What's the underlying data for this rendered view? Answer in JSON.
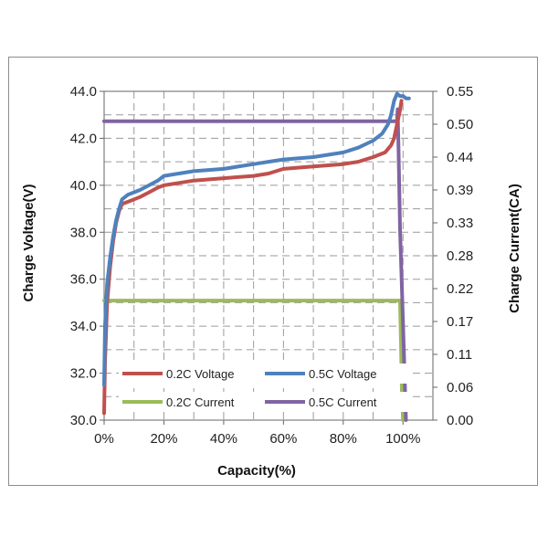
{
  "chart_data": {
    "type": "line",
    "xlabel": "Capacity(%)",
    "ylabel_left": "Charge Voltage(V)",
    "ylabel_right": "Charge Current(CA)",
    "xlim": [
      0,
      110
    ],
    "ylim_left": [
      30.0,
      44.0
    ],
    "ylim_right": [
      0.0,
      0.55
    ],
    "x_ticks": [
      "0%",
      "20%",
      "40%",
      "60%",
      "80%",
      "100%"
    ],
    "y_left_ticks": [
      "30.0",
      "32.0",
      "34.0",
      "36.0",
      "38.0",
      "40.0",
      "42.0",
      "44.0"
    ],
    "y_right_ticks": [
      "0.00",
      "0.06",
      "0.11",
      "0.17",
      "0.22",
      "0.28",
      "0.33",
      "0.39",
      "0.44",
      "0.50",
      "0.55"
    ],
    "grid": true,
    "legend_position": "bottom-left",
    "series": [
      {
        "name": "0.2C Voltage",
        "axis": "left",
        "color": "#c0504d",
        "x": [
          0,
          0.3,
          1,
          2,
          3,
          4,
          5,
          6,
          8,
          10,
          12,
          15,
          18,
          20,
          25,
          30,
          40,
          50,
          55,
          60,
          70,
          80,
          85,
          90,
          94,
          96,
          97,
          98,
          99,
          99.5
        ],
        "y": [
          30.3,
          32.5,
          35.0,
          36.5,
          37.6,
          38.4,
          38.9,
          39.2,
          39.3,
          39.4,
          39.5,
          39.7,
          39.9,
          40.0,
          40.1,
          40.2,
          40.3,
          40.4,
          40.5,
          40.7,
          40.8,
          40.9,
          41.0,
          41.2,
          41.4,
          41.7,
          42.0,
          42.6,
          43.2,
          43.6
        ]
      },
      {
        "name": "0.5C Voltage",
        "axis": "left",
        "color": "#4f81bd",
        "x": [
          0,
          0.3,
          1,
          2,
          3,
          4,
          5,
          6,
          8,
          10,
          12,
          15,
          18,
          20,
          25,
          30,
          40,
          50,
          55,
          60,
          70,
          80,
          85,
          90,
          93,
          95,
          96,
          97,
          98,
          99,
          100,
          101,
          102
        ],
        "y": [
          31.5,
          34.0,
          35.8,
          36.9,
          37.8,
          38.5,
          39.0,
          39.4,
          39.6,
          39.7,
          39.8,
          40.0,
          40.2,
          40.4,
          40.5,
          40.6,
          40.7,
          40.9,
          41.0,
          41.1,
          41.2,
          41.4,
          41.6,
          41.9,
          42.2,
          42.6,
          43.0,
          43.6,
          43.9,
          43.8,
          43.8,
          43.7,
          43.7
        ]
      },
      {
        "name": "0.2C Current",
        "axis": "right",
        "color": "#9bbb59",
        "x": [
          0,
          99,
          99.3,
          99.6,
          100
        ],
        "y": [
          0.2,
          0.2,
          0.13,
          0.05,
          0.0
        ]
      },
      {
        "name": "0.5C Current",
        "axis": "right",
        "color": "#8064a2",
        "x": [
          0,
          98,
          98.2,
          98.5,
          99,
          100,
          101
        ],
        "y": [
          0.5,
          0.5,
          0.52,
          0.45,
          0.32,
          0.16,
          0.0
        ]
      }
    ]
  }
}
